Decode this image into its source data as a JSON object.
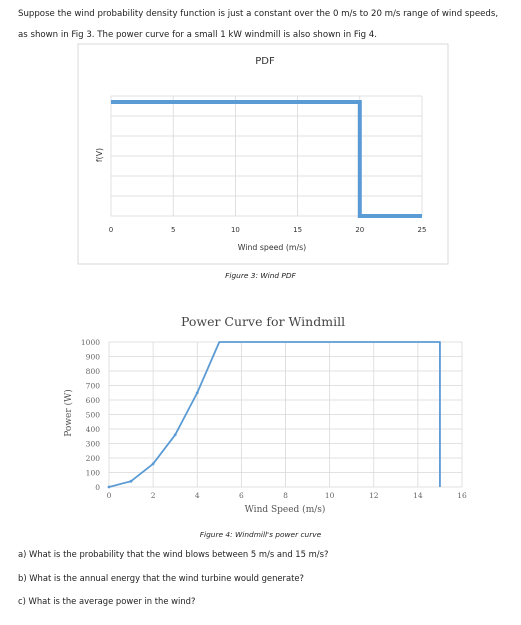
{
  "intro_text": "Suppose the wind probability density function is just a constant over the 0 m/s to 20 m/s range of wind speeds, as shown in Fig 3. The power curve for a small 1 kW windmill is also shown in Fig 4.",
  "fig3_caption": "Figure 3: Wind PDF",
  "fig4_caption": "Figure 4: Windmill's power curve",
  "questions": [
    "a) What is the probability that the wind blows between 5 m/s and 15 m/s?",
    "b) What is the annual energy that the wind turbine would generate?",
    "c) What is the average power in the wind?"
  ],
  "colors": {
    "line": "#5b9bd5",
    "grid": "#d9d9d9"
  },
  "chart_data": [
    {
      "type": "line",
      "title": "PDF",
      "xlabel": "Wind speed (m/s)",
      "ylabel": "f(V)",
      "xlim": [
        0,
        25
      ],
      "xticks": [
        0,
        5,
        10,
        15,
        20,
        25
      ],
      "ygrid_lines": 6,
      "grid": true,
      "series": [
        {
          "points": [
            [
              0,
              1
            ],
            [
              20,
              1
            ],
            [
              20,
              0
            ],
            [
              25,
              0
            ]
          ]
        }
      ]
    },
    {
      "type": "line",
      "title": "Power Curve for Windmill",
      "xlabel": "Wind Speed (m/s)",
      "ylabel": "Power (W)",
      "xlim": [
        0,
        16
      ],
      "ylim": [
        0,
        1000
      ],
      "xticks": [
        0,
        2,
        4,
        6,
        8,
        10,
        12,
        14,
        16
      ],
      "yticks": [
        0,
        100,
        200,
        300,
        400,
        500,
        600,
        700,
        800,
        900,
        1000
      ],
      "grid": true,
      "series": [
        {
          "points": [
            [
              0,
              0
            ],
            [
              1,
              40
            ],
            [
              2,
              160
            ],
            [
              3,
              360
            ],
            [
              4,
              650
            ],
            [
              5,
              1000
            ],
            [
              15,
              1000
            ],
            [
              15,
              0
            ]
          ]
        }
      ]
    }
  ]
}
